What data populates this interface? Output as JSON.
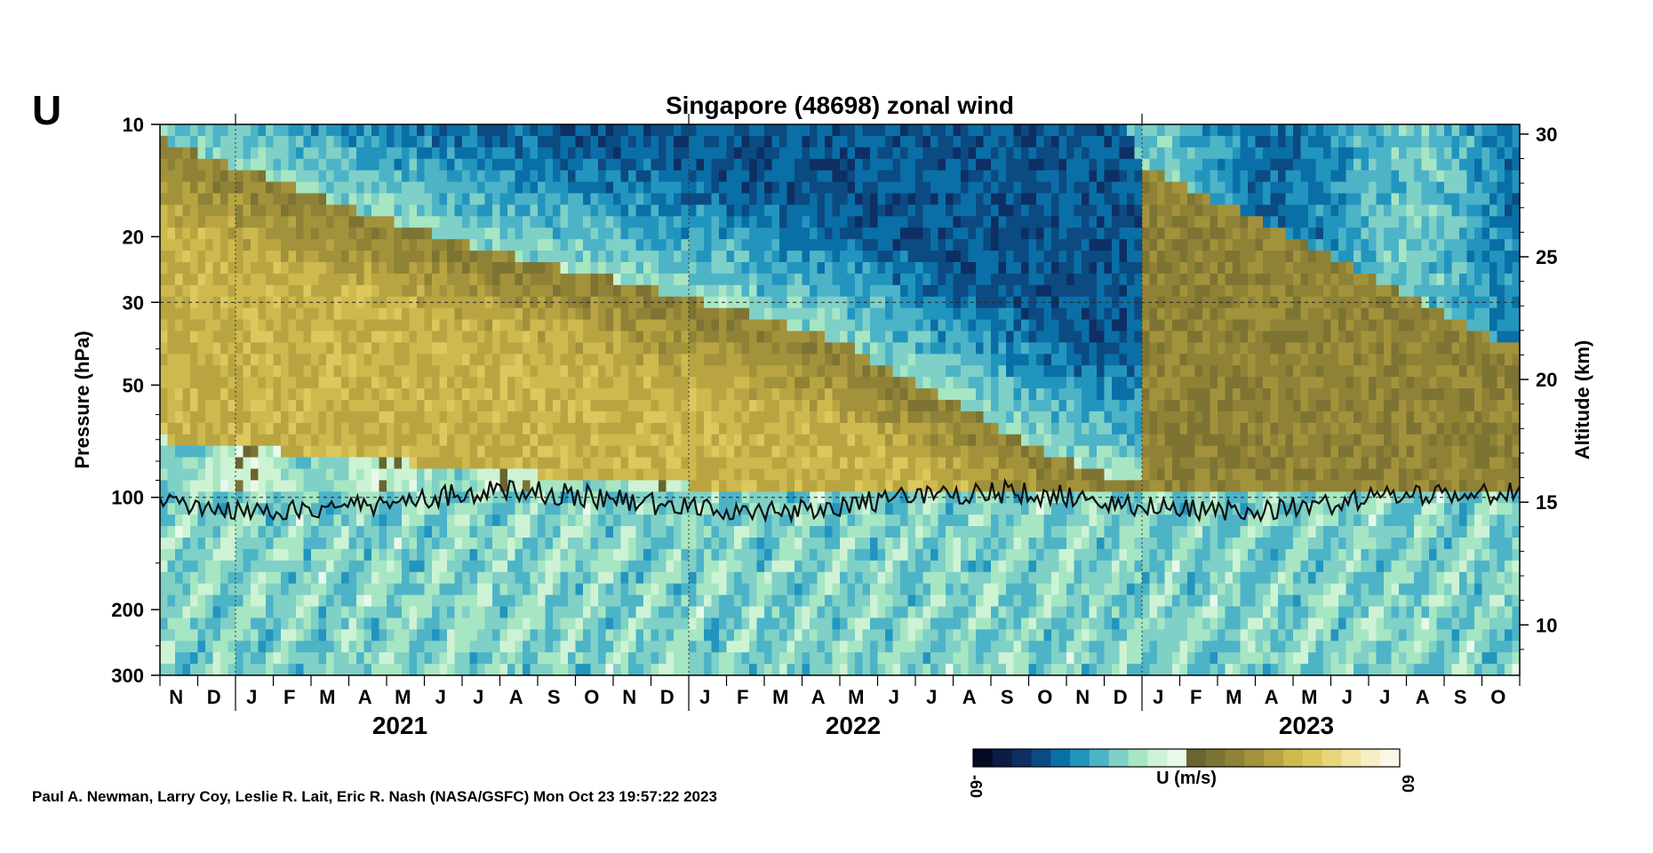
{
  "panel_letter": "U",
  "credit": "Paul A. Newman, Larry Coy, Leslie R. Lait, Eric R. Nash (NASA/GSFC) Mon Oct 23 19:57:22 2023",
  "colors": {
    "easterly_ramp": [
      "#060b22",
      "#0b1d45",
      "#0d2f63",
      "#0c4a82",
      "#0a6fa6",
      "#2295bf",
      "#4db3c7",
      "#7fd0c6",
      "#a7e6c3",
      "#cdf3d4",
      "#e8f9ea"
    ],
    "westerly_ramp": [
      "#6a6430",
      "#7d7333",
      "#8f8236",
      "#a2923b",
      "#b8a542",
      "#cdb94e",
      "#dcc85d",
      "#e8d77a",
      "#f1e4a0",
      "#f7efc4",
      "#fbf7e8"
    ]
  },
  "chart_data": {
    "type": "heatmap",
    "title": "Singapore (48698) zonal wind",
    "ylabel": "Pressure (hPa)",
    "ylabel_right": "Altitude (km)",
    "y_scale": "log",
    "ylim_hpa": [
      300,
      10
    ],
    "y_ticks": [
      "10",
      "20",
      "30",
      "50",
      "100",
      "200",
      "300"
    ],
    "y_tick_values": [
      10,
      20,
      30,
      50,
      100,
      200,
      300
    ],
    "y_right_ticks": [
      "30",
      "25",
      "20",
      "15",
      "10"
    ],
    "y_right_tick_values_km": [
      30,
      25,
      20,
      15,
      10
    ],
    "x_month_labels": [
      "N",
      "D",
      "J",
      "F",
      "M",
      "A",
      "M",
      "J",
      "J",
      "A",
      "S",
      "O",
      "N",
      "D",
      "J",
      "F",
      "M",
      "A",
      "M",
      "J",
      "J",
      "A",
      "S",
      "O",
      "N",
      "D",
      "J",
      "F",
      "M",
      "A",
      "M",
      "J",
      "J",
      "A",
      "S",
      "O"
    ],
    "year_labels": [
      "2021",
      "2022",
      "2023"
    ],
    "x_range": [
      "2020-11",
      "2023-10"
    ],
    "colorbar": {
      "label": "U (m/s)",
      "min_label": "-60",
      "max_label": "60",
      "min": -60,
      "max": 60
    },
    "reference_lines_hpa": [
      30,
      100
    ],
    "tropopause_hpa_approx": 100,
    "qbo_zero_wind_lines_hpa": {
      "months": [
        0,
        3,
        6,
        9,
        12,
        15,
        18,
        21,
        24,
        27,
        30,
        35
      ],
      "easterly_base_upper": [
        13,
        17,
        21,
        26,
        31,
        35,
        40,
        60,
        80,
        95,
        100,
        100
      ],
      "easterly_top": [
        10,
        10,
        10,
        10,
        10,
        10,
        10,
        10,
        10,
        10,
        10,
        10
      ],
      "new_easterly_top": [
        10,
        10,
        10,
        10,
        10,
        10,
        10,
        10,
        10,
        10,
        10,
        10
      ]
    }
  }
}
